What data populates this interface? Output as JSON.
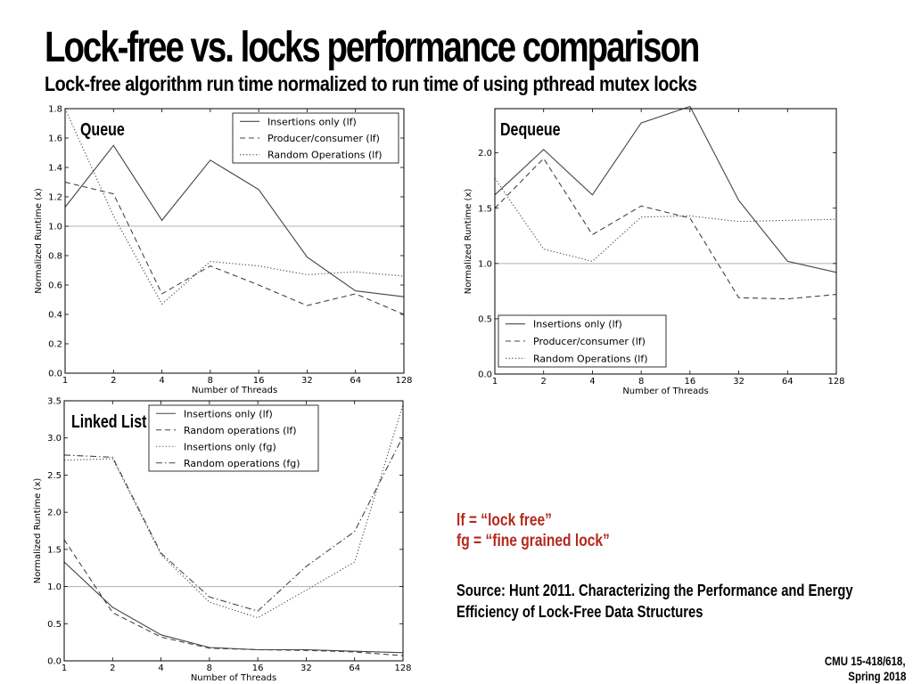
{
  "slide": {
    "title": "Lock-free vs. locks performance comparison",
    "subtitle": "Lock-free algorithm run time normalized to run time of using pthread mutex locks",
    "legend_note_lf": "lf = “lock free”",
    "legend_note_fg": "fg = “fine grained lock”",
    "source_line1": "Source: Hunt 2011. Characterizing the Performance and Energy",
    "source_line2": "Efficiency of Lock-Free Data Structures",
    "footer_line1": "CMU 15-418/618,",
    "footer_line2": "Spring 2018"
  },
  "chart_data": [
    {
      "id": "queue",
      "type": "line",
      "panel_label": "Queue",
      "xlabel": "Number of Threads",
      "ylabel": "Normalized Runtime (x)",
      "x": [
        "1",
        "2",
        "4",
        "8",
        "16",
        "32",
        "64",
        "128"
      ],
      "ylim": [
        0,
        1.8
      ],
      "yticks": [
        "0.0",
        "0.2",
        "0.4",
        "0.6",
        "0.8",
        "1.0",
        "1.2",
        "1.4",
        "1.6",
        "1.8"
      ],
      "reference_line": 1.0,
      "grid": false,
      "legend_position": "top-right",
      "series": [
        {
          "name": "Insertions only (lf)",
          "style": "solid",
          "values": [
            1.13,
            1.55,
            1.04,
            1.45,
            1.25,
            0.79,
            0.56,
            0.52
          ]
        },
        {
          "name": "Producer/consumer (lf)",
          "style": "dashed",
          "values": [
            1.3,
            1.22,
            0.54,
            0.73,
            0.6,
            0.46,
            0.54,
            0.4
          ]
        },
        {
          "name": "Random Operations (lf)",
          "style": "dotted",
          "values": [
            1.8,
            1.07,
            0.47,
            0.76,
            0.73,
            0.67,
            0.69,
            0.66
          ]
        }
      ]
    },
    {
      "id": "dequeue",
      "type": "line",
      "panel_label": "Dequeue",
      "xlabel": "Number of Threads",
      "ylabel": "Normalized Runtime (x)",
      "x": [
        "1",
        "2",
        "4",
        "8",
        "16",
        "32",
        "64",
        "128"
      ],
      "ylim": [
        0,
        2.4
      ],
      "yticks": [
        "0.0",
        "0.5",
        "1.0",
        "1.5",
        "2.0"
      ],
      "reference_line": 1.0,
      "grid": false,
      "legend_position": "bottom-left",
      "series": [
        {
          "name": "Insertions only (lf)",
          "style": "solid",
          "values": [
            1.62,
            2.03,
            1.62,
            2.27,
            2.42,
            1.57,
            1.02,
            0.92
          ]
        },
        {
          "name": "Producer/consumer (lf)",
          "style": "dashed",
          "values": [
            1.5,
            1.95,
            1.26,
            1.52,
            1.41,
            0.69,
            0.68,
            0.72
          ]
        },
        {
          "name": "Random Operations (lf)",
          "style": "dotted",
          "values": [
            1.77,
            1.13,
            1.02,
            1.42,
            1.43,
            1.38,
            1.39,
            1.4
          ]
        }
      ]
    },
    {
      "id": "linkedlist",
      "type": "line",
      "panel_label": "Linked List",
      "xlabel": "Number of Threads",
      "ylabel": "Normalized Runtime (x)",
      "x": [
        "1",
        "2",
        "4",
        "8",
        "16",
        "32",
        "64",
        "128"
      ],
      "ylim": [
        0,
        3.5
      ],
      "yticks": [
        "0.0",
        "0.5",
        "1.0",
        "1.5",
        "2.0",
        "2.5",
        "3.0",
        "3.5"
      ],
      "reference_line": 1.0,
      "grid": false,
      "legend_position": "top-center",
      "series": [
        {
          "name": "Insertions only (lf)",
          "style": "solid",
          "values": [
            1.33,
            0.72,
            0.35,
            0.18,
            0.15,
            0.15,
            0.13,
            0.11
          ]
        },
        {
          "name": "Random operations (lf)",
          "style": "dashed",
          "values": [
            1.63,
            0.65,
            0.32,
            0.17,
            0.15,
            0.14,
            0.12,
            0.07
          ]
        },
        {
          "name": "Insertions only (fg)",
          "style": "dotted",
          "values": [
            2.7,
            2.72,
            1.43,
            0.79,
            0.58,
            0.95,
            1.33,
            3.45
          ]
        },
        {
          "name": "Random operations (fg)",
          "style": "dashdot",
          "values": [
            2.77,
            2.74,
            1.45,
            0.86,
            0.67,
            1.27,
            1.74,
            3.02
          ]
        }
      ]
    }
  ]
}
